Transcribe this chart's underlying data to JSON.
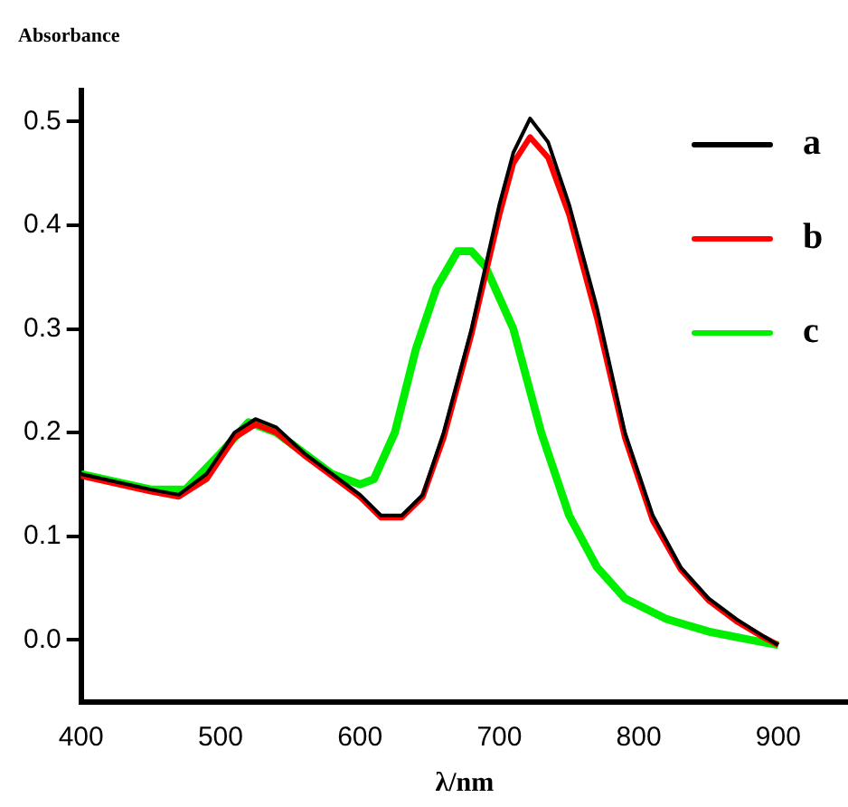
{
  "chart_data": {
    "type": "line",
    "ylabel": "Absorbance",
    "xlabel": "λ/nm",
    "xlim": [
      400,
      950
    ],
    "ylim": [
      -0.06,
      0.53
    ],
    "xticks": [
      400,
      500,
      600,
      700,
      800,
      900
    ],
    "yticks": [
      {
        "value": 0,
        "label": "0.0"
      },
      0.1,
      0.2,
      0.3,
      0.4,
      0.5
    ],
    "grid": false,
    "legend": "top right",
    "marker": "none",
    "line_style": "solid",
    "x": [
      400,
      450,
      470,
      490,
      510,
      525,
      540,
      560,
      580,
      600,
      615,
      630,
      645,
      660,
      680,
      700,
      710,
      722,
      735,
      750,
      770,
      790,
      810,
      830,
      850,
      870,
      890,
      900
    ],
    "series": [
      {
        "name": "a",
        "color": "#000000",
        "values": [
          0.16,
          0.145,
          0.14,
          0.16,
          0.2,
          0.213,
          0.205,
          0.18,
          0.16,
          0.14,
          0.12,
          0.12,
          0.14,
          0.2,
          0.3,
          0.42,
          0.47,
          0.503,
          0.48,
          0.42,
          0.32,
          0.2,
          0.12,
          0.07,
          0.04,
          0.02,
          0.003,
          -0.005
        ]
      },
      {
        "name": "b",
        "color": "#ff0000",
        "values": [
          0.158,
          0.143,
          0.138,
          0.155,
          0.195,
          0.208,
          0.2,
          0.178,
          0.158,
          0.138,
          0.118,
          0.118,
          0.138,
          0.195,
          0.295,
          0.41,
          0.46,
          0.485,
          0.465,
          0.41,
          0.31,
          0.195,
          0.115,
          0.068,
          0.038,
          0.018,
          0.002,
          -0.005
        ]
      },
      {
        "name": "c",
        "color": "#00ee00",
        "x": [
          400,
          450,
          475,
          500,
          520,
          540,
          560,
          580,
          600,
          610,
          625,
          640,
          655,
          670,
          680,
          690,
          710,
          730,
          750,
          770,
          790,
          820,
          850,
          880,
          900
        ],
        "values": [
          0.16,
          0.145,
          0.145,
          0.18,
          0.21,
          0.2,
          0.18,
          0.16,
          0.15,
          0.155,
          0.2,
          0.28,
          0.34,
          0.375,
          0.375,
          0.36,
          0.3,
          0.2,
          0.12,
          0.07,
          0.04,
          0.02,
          0.008,
          0.0,
          -0.005
        ]
      }
    ]
  }
}
